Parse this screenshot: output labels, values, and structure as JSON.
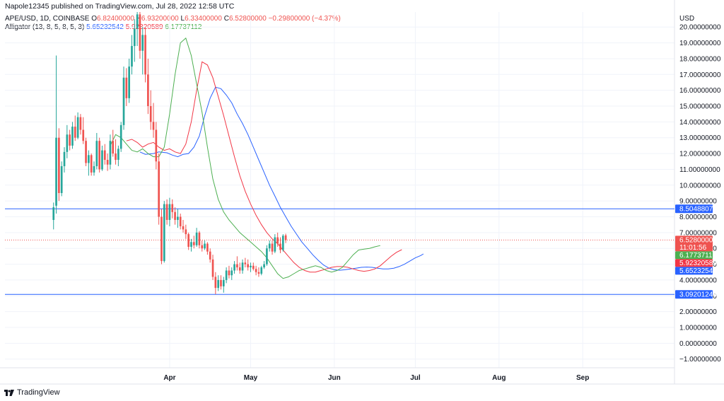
{
  "header": {
    "published": "Napole12345 published on TradingView.com, Jul 28, 2022 12:58 UTC",
    "symbol": "APE/USD, 1D, COINBASE",
    "open_label": "O",
    "open": "6.82400000",
    "high_label": "H",
    "high": "6.93200000",
    "low_label": "L",
    "low": "6.33400000",
    "close_label": "C",
    "close": "6.52800000",
    "change": "−0.29800000 (−4.37%)",
    "indicator_name": "Alligator (13, 8, 5, 8, 5, 3)",
    "jaw": "5.65232542",
    "teeth": "5.92320589",
    "lips": "6.17737112"
  },
  "footer": {
    "brand": "TradingView"
  },
  "colors": {
    "up": "#26a69a",
    "down": "#ef5350",
    "jaw": "#2962ff",
    "teeth": "#f23645",
    "lips": "#4caf50",
    "hline": "#2962ff",
    "price_line": "#ef5350",
    "grid": "#f0f3fa"
  },
  "chart_data": {
    "type": "candlestick",
    "currency": "USD",
    "y_ticks": [
      "−1.00000000",
      "0.00000000",
      "1.00000000",
      "2.00000000",
      "3.00000000",
      "4.00000000",
      "5.00000000",
      "6.00000000",
      "7.00000000",
      "8.00000000",
      "9.00000000",
      "10.00000000",
      "11.00000000",
      "12.00000000",
      "13.00000000",
      "14.00000000",
      "15.00000000",
      "16.00000000",
      "17.00000000",
      "18.00000000",
      "19.00000000",
      "20.00000000"
    ],
    "y_tick_values": [
      -1,
      0,
      1,
      2,
      3,
      4,
      5,
      6,
      7,
      8,
      9,
      10,
      11,
      12,
      13,
      14,
      15,
      16,
      17,
      18,
      19,
      20
    ],
    "ylim": [
      -1.55,
      20.95
    ],
    "x_ticks": [
      "Apr",
      "May",
      "Jun",
      "Jul",
      "Aug",
      "Sep"
    ],
    "x_tick_days": [
      14,
      44,
      75,
      105,
      136,
      167
    ],
    "x_range_days": [
      -47,
      201
    ],
    "horizontal_lines": [
      {
        "value": 8.50488071,
        "label": "8.50488071"
      },
      {
        "value": 3.09201246,
        "label": "3.09201246"
      }
    ],
    "price_labels": [
      {
        "value": 6.528,
        "label": "6.52800000",
        "sublabel": "11:01:56",
        "color": "#ef5350"
      },
      {
        "value": 6.17737112,
        "label": "6.17737112",
        "color": "#4caf50"
      },
      {
        "value": 5.92320589,
        "label": "5.92320589",
        "color": "#f23645"
      },
      {
        "value": 5.65232542,
        "label": "5.65232542",
        "color": "#2962ff"
      }
    ],
    "candles": [
      [
        7.8,
        8.9,
        7.2,
        8.6
      ],
      [
        8.7,
        18.2,
        8.2,
        13.0
      ],
      [
        13.0,
        13.6,
        9.0,
        9.5
      ],
      [
        9.5,
        11.5,
        9.3,
        11.2
      ],
      [
        11.2,
        12.4,
        10.8,
        12.1
      ],
      [
        12.1,
        13.8,
        11.7,
        13.2
      ],
      [
        13.2,
        13.5,
        12.2,
        12.5
      ],
      [
        12.5,
        14.0,
        12.3,
        13.7
      ],
      [
        13.7,
        14.4,
        12.8,
        13.0
      ],
      [
        13.0,
        14.6,
        12.9,
        14.3
      ],
      [
        14.3,
        14.5,
        13.2,
        13.5
      ],
      [
        13.5,
        14.3,
        12.6,
        12.8
      ],
      [
        12.8,
        13.0,
        11.2,
        11.4
      ],
      [
        11.4,
        12.2,
        10.6,
        11.9
      ],
      [
        11.9,
        12.0,
        10.6,
        10.8
      ],
      [
        10.8,
        11.5,
        10.6,
        11.2
      ],
      [
        11.2,
        13.3,
        11.0,
        12.8
      ],
      [
        12.8,
        13.0,
        10.8,
        11.0
      ],
      [
        11.0,
        12.5,
        10.9,
        12.2
      ],
      [
        12.2,
        12.6,
        11.3,
        11.6
      ],
      [
        11.6,
        12.0,
        10.9,
        11.3
      ],
      [
        11.3,
        13.2,
        11.0,
        12.8
      ],
      [
        12.8,
        13.5,
        11.8,
        12.0
      ],
      [
        12.0,
        12.9,
        11.3,
        11.6
      ],
      [
        11.6,
        12.5,
        11.2,
        12.3
      ],
      [
        12.3,
        14.0,
        12.1,
        13.8
      ],
      [
        13.8,
        17.5,
        13.5,
        16.8
      ],
      [
        16.8,
        17.4,
        15.0,
        15.5
      ],
      [
        15.5,
        18.0,
        15.2,
        17.5
      ],
      [
        17.5,
        19.5,
        17.0,
        18.8
      ],
      [
        18.8,
        20.5,
        17.8,
        19.9
      ],
      [
        19.9,
        21.0,
        18.8,
        20.8
      ],
      [
        20.8,
        21.0,
        18.0,
        18.5
      ],
      [
        18.5,
        20.0,
        17.0,
        19.5
      ],
      [
        19.5,
        20.0,
        16.5,
        17.0
      ],
      [
        17.0,
        18.0,
        14.5,
        15.0
      ],
      [
        15.0,
        16.0,
        13.5,
        14.0
      ],
      [
        14.0,
        15.2,
        13.0,
        13.5
      ],
      [
        13.5,
        14.0,
        11.0,
        11.5
      ],
      [
        11.5,
        12.0,
        7.5,
        8.0
      ],
      [
        8.0,
        8.5,
        5.0,
        5.2
      ],
      [
        5.2,
        9.0,
        5.1,
        8.8
      ],
      [
        8.8,
        9.1,
        7.5,
        7.8
      ],
      [
        7.8,
        9.2,
        7.4,
        8.8
      ],
      [
        8.8,
        9.1,
        7.9,
        8.3
      ],
      [
        8.3,
        8.6,
        7.5,
        7.8
      ],
      [
        7.8,
        8.5,
        7.3,
        8.0
      ],
      [
        8.0,
        8.2,
        7.2,
        7.4
      ],
      [
        7.4,
        7.8,
        7.0,
        7.2
      ],
      [
        7.2,
        7.5,
        6.6,
        6.9
      ],
      [
        6.9,
        7.0,
        5.9,
        6.1
      ],
      [
        6.1,
        6.6,
        5.8,
        6.4
      ],
      [
        6.4,
        6.8,
        6.0,
        6.2
      ],
      [
        6.2,
        7.3,
        6.1,
        7.0
      ],
      [
        7.0,
        7.1,
        6.0,
        6.2
      ],
      [
        6.2,
        6.5,
        5.8,
        6.0
      ],
      [
        6.0,
        6.5,
        5.9,
        6.3
      ],
      [
        6.3,
        6.4,
        5.6,
        5.8
      ],
      [
        5.8,
        6.0,
        5.1,
        5.3
      ],
      [
        5.3,
        5.6,
        4.0,
        4.2
      ],
      [
        4.2,
        4.5,
        3.1,
        3.5
      ],
      [
        3.5,
        4.3,
        3.3,
        4.0
      ],
      [
        4.0,
        4.3,
        3.4,
        3.6
      ],
      [
        3.6,
        4.2,
        3.2,
        4.0
      ],
      [
        4.0,
        4.8,
        3.8,
        4.6
      ],
      [
        4.6,
        4.9,
        4.1,
        4.3
      ],
      [
        4.3,
        4.8,
        4.0,
        4.6
      ],
      [
        4.6,
        5.2,
        4.4,
        5.0
      ],
      [
        5.0,
        5.5,
        4.6,
        4.8
      ],
      [
        4.8,
        5.1,
        4.4,
        4.6
      ],
      [
        4.6,
        5.3,
        4.4,
        5.1
      ],
      [
        5.1,
        5.4,
        4.8,
        5.0
      ],
      [
        5.0,
        5.3,
        4.6,
        4.8
      ],
      [
        4.8,
        5.1,
        4.5,
        4.9
      ],
      [
        4.9,
        5.1,
        4.6,
        4.7
      ],
      [
        4.7,
        4.9,
        4.3,
        4.5
      ],
      [
        4.5,
        4.8,
        4.2,
        4.4
      ],
      [
        4.4,
        4.9,
        4.3,
        4.8
      ],
      [
        4.8,
        5.2,
        4.7,
        5.0
      ],
      [
        5.0,
        6.2,
        4.9,
        6.0
      ],
      [
        6.0,
        6.5,
        5.8,
        6.3
      ],
      [
        6.3,
        6.5,
        5.6,
        5.8
      ],
      [
        5.8,
        6.9,
        5.7,
        6.7
      ],
      [
        6.7,
        7.0,
        6.1,
        6.3
      ],
      [
        6.3,
        6.7,
        5.7,
        5.9
      ],
      [
        5.9,
        6.9,
        5.8,
        6.8
      ],
      [
        6.824,
        6.932,
        6.334,
        6.528
      ]
    ],
    "candles_start_day": -29,
    "jaw": {
      "name": "Alligator Jaw",
      "shift_days": 8,
      "points": [
        [
          3,
          12.1
        ],
        [
          5,
          11.95
        ],
        [
          8,
          12.0
        ],
        [
          10,
          12.1
        ],
        [
          13,
          12.05
        ],
        [
          15,
          11.9
        ],
        [
          17,
          11.8
        ],
        [
          19,
          11.95
        ],
        [
          21,
          12.0
        ],
        [
          23,
          12.4
        ],
        [
          25,
          13.1
        ],
        [
          27,
          14.4
        ],
        [
          29,
          15.5
        ],
        [
          31,
          16.2
        ],
        [
          33,
          16.1
        ],
        [
          35,
          15.7
        ],
        [
          37,
          15.2
        ],
        [
          39,
          14.5
        ],
        [
          41,
          13.9
        ],
        [
          43,
          13.2
        ],
        [
          45,
          12.4
        ],
        [
          47,
          11.6
        ],
        [
          49,
          10.8
        ],
        [
          51,
          10.0
        ],
        [
          53,
          9.3
        ],
        [
          55,
          8.6
        ],
        [
          57,
          8.0
        ],
        [
          59,
          7.4
        ],
        [
          61,
          6.9
        ],
        [
          63,
          6.4
        ],
        [
          65,
          6.0
        ],
        [
          67,
          5.6
        ],
        [
          69,
          5.25
        ],
        [
          71,
          4.95
        ],
        [
          73,
          4.75
        ],
        [
          75,
          4.65
        ],
        [
          77,
          4.62
        ],
        [
          79,
          4.65
        ],
        [
          81,
          4.7
        ],
        [
          83,
          4.75
        ],
        [
          85,
          4.8
        ],
        [
          87,
          4.82
        ],
        [
          89,
          4.8
        ],
        [
          91,
          4.75
        ],
        [
          93,
          4.7
        ],
        [
          95,
          4.7
        ],
        [
          97,
          4.75
        ],
        [
          99,
          4.85
        ],
        [
          101,
          5.0
        ],
        [
          103,
          5.2
        ],
        [
          105,
          5.4
        ],
        [
          107,
          5.55
        ],
        [
          108,
          5.65
        ]
      ]
    },
    "teeth": {
      "name": "Alligator Teeth",
      "shift_days": 5,
      "points": [
        [
          -2,
          12.8
        ],
        [
          0,
          12.9
        ],
        [
          2,
          12.7
        ],
        [
          4,
          12.4
        ],
        [
          6,
          12.6
        ],
        [
          8,
          12.7
        ],
        [
          10,
          12.4
        ],
        [
          12,
          12.2
        ],
        [
          14,
          12.3
        ],
        [
          16,
          12.1
        ],
        [
          18,
          12.0
        ],
        [
          20,
          12.6
        ],
        [
          22,
          14.0
        ],
        [
          24,
          16.0
        ],
        [
          26,
          17.8
        ],
        [
          28,
          17.6
        ],
        [
          30,
          16.8
        ],
        [
          32,
          15.6
        ],
        [
          34,
          14.4
        ],
        [
          36,
          13.1
        ],
        [
          38,
          11.8
        ],
        [
          40,
          10.6
        ],
        [
          42,
          9.6
        ],
        [
          44,
          8.8
        ],
        [
          46,
          8.1
        ],
        [
          48,
          7.5
        ],
        [
          50,
          7.0
        ],
        [
          52,
          6.6
        ],
        [
          54,
          6.3
        ],
        [
          56,
          5.9
        ],
        [
          58,
          5.5
        ],
        [
          60,
          5.1
        ],
        [
          62,
          4.8
        ],
        [
          64,
          4.6
        ],
        [
          66,
          4.5
        ],
        [
          68,
          4.5
        ],
        [
          70,
          4.6
        ],
        [
          72,
          4.7
        ],
        [
          74,
          4.8
        ],
        [
          76,
          4.85
        ],
        [
          78,
          4.85
        ],
        [
          80,
          4.8
        ],
        [
          82,
          4.7
        ],
        [
          84,
          4.6
        ],
        [
          86,
          4.55
        ],
        [
          88,
          4.6
        ],
        [
          90,
          4.7
        ],
        [
          92,
          4.9
        ],
        [
          94,
          5.2
        ],
        [
          96,
          5.5
        ],
        [
          98,
          5.75
        ],
        [
          100,
          5.92
        ]
      ]
    },
    "lips": {
      "name": "Alligator Lips",
      "shift_days": 3,
      "points": [
        [
          -8,
          12.5
        ],
        [
          -6,
          13.2
        ],
        [
          -4,
          13.0
        ],
        [
          -2,
          12.6
        ],
        [
          0,
          12.2
        ],
        [
          2,
          12.1
        ],
        [
          4,
          12.3
        ],
        [
          6,
          12.0
        ],
        [
          8,
          11.8
        ],
        [
          10,
          11.8
        ],
        [
          12,
          12.4
        ],
        [
          14,
          14.5
        ],
        [
          16,
          17.0
        ],
        [
          18,
          19.0
        ],
        [
          20,
          19.3
        ],
        [
          22,
          18.2
        ],
        [
          24,
          16.4
        ],
        [
          26,
          14.6
        ],
        [
          28,
          12.4
        ],
        [
          30,
          10.4
        ],
        [
          32,
          9.1
        ],
        [
          34,
          8.3
        ],
        [
          36,
          7.8
        ],
        [
          38,
          7.4
        ],
        [
          40,
          7.0
        ],
        [
          42,
          6.7
        ],
        [
          44,
          6.4
        ],
        [
          46,
          6.1
        ],
        [
          48,
          5.8
        ],
        [
          50,
          5.4
        ],
        [
          52,
          4.9
        ],
        [
          54,
          4.4
        ],
        [
          56,
          4.1
        ],
        [
          58,
          4.2
        ],
        [
          60,
          4.4
        ],
        [
          62,
          4.6
        ],
        [
          64,
          4.7
        ],
        [
          66,
          4.8
        ],
        [
          68,
          4.9
        ],
        [
          70,
          4.8
        ],
        [
          72,
          4.6
        ],
        [
          74,
          4.5
        ],
        [
          76,
          4.6
        ],
        [
          78,
          4.8
        ],
        [
          80,
          5.2
        ],
        [
          82,
          5.6
        ],
        [
          84,
          5.9
        ],
        [
          86,
          5.95
        ],
        [
          88,
          6.0
        ],
        [
          90,
          6.1
        ],
        [
          92,
          6.18
        ]
      ]
    },
    "price_line_value": 6.528
  }
}
